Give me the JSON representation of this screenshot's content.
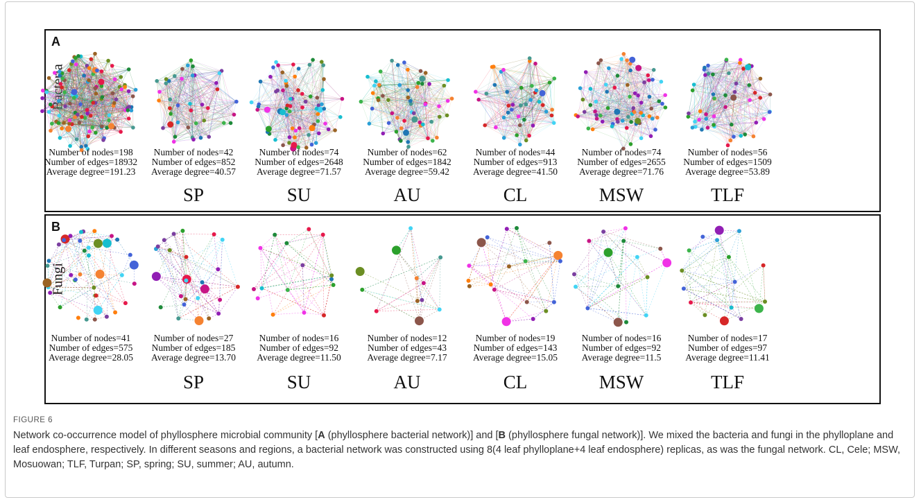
{
  "figure": {
    "label": "FIGURE 6",
    "caption_parts": [
      {
        "text": "Network co-occurrence model of phyllosphere microbial community [",
        "bold": false
      },
      {
        "text": "A",
        "bold": true
      },
      {
        "text": " (phyllosphere bacterial network)] and [",
        "bold": false
      },
      {
        "text": "B",
        "bold": true
      },
      {
        "text": " (phyllosphere fungal network)]. We mixed the bacteria and fungi in the phylloplane and leaf endosphere, respectively. In different seasons and regions, a bacterial network was constructed using 8(4 leaf phylloplane+4 leaf endosphere) replicas, as was the fungal network. CL, Cele; MSW, Mosuowan; TLF, Turpan; SP, spring; SU, summer; AU, autumn.",
        "bold": false
      }
    ]
  },
  "panels": [
    {
      "letter": "A",
      "row_label": "Bacteria",
      "network_density": "dense",
      "groups": [
        "SP",
        "SU",
        "AU",
        "CL",
        "MSW",
        "TLF"
      ],
      "networks": [
        {
          "group": "",
          "nodes": "Number of nodes=198",
          "edges": "Number of edges=18932",
          "degree": "Average degree=191.23",
          "node_count": 198
        },
        {
          "group": "SP",
          "nodes": "Number of nodes=42",
          "edges": "Number of edges=852",
          "degree": "Average degree=40.57",
          "node_count": 42
        },
        {
          "group": "SU",
          "nodes": "Number of nodes=74",
          "edges": "Number of edges=2648",
          "degree": "Average degree=71.57",
          "node_count": 74
        },
        {
          "group": "AU",
          "nodes": "Number of nodes=62",
          "edges": "Number of edges=1842",
          "degree": "Average degree=59.42",
          "node_count": 62
        },
        {
          "group": "CL",
          "nodes": "Number of nodes=44",
          "edges": "Number of edges=913",
          "degree": "Average degree=41.50",
          "node_count": 44
        },
        {
          "group": "MSW",
          "nodes": "Number of nodes=74",
          "edges": "Number of edges=2655",
          "degree": "Average degree=71.76",
          "node_count": 74
        },
        {
          "group": "TLF",
          "nodes": "Number of nodes=56",
          "edges": "Number of edges=1509",
          "degree": "Average degree=53.89",
          "node_count": 56
        }
      ]
    },
    {
      "letter": "B",
      "row_label": "Fungi",
      "network_density": "sparse",
      "groups": [
        "SP",
        "SU",
        "AU",
        "CL",
        "MSW",
        "TLF"
      ],
      "networks": [
        {
          "group": "",
          "nodes": "Number of nodes=41",
          "edges": "Number of edges=575",
          "degree": "Average degree=28.05",
          "node_count": 41
        },
        {
          "group": "SP",
          "nodes": "Number of nodes=27",
          "edges": "Number of edges=185",
          "degree": "Average degree=13.70",
          "node_count": 27
        },
        {
          "group": "SU",
          "nodes": "Number of nodes=16",
          "edges": "Number of edges=92",
          "degree": "Average degree=11.50",
          "node_count": 16
        },
        {
          "group": "AU",
          "nodes": "Number of nodes=12",
          "edges": "Number of edges=43",
          "degree": "Average degree=7.17",
          "node_count": 12
        },
        {
          "group": "CL",
          "nodes": "Number of nodes=19",
          "edges": "Number of edges=143",
          "degree": "Average degree=15.05",
          "node_count": 19
        },
        {
          "group": "MSW",
          "nodes": "Number of nodes=16",
          "edges": "Number of edges=92",
          "degree": "Average degree=11.5",
          "node_count": 16
        },
        {
          "group": "TLF",
          "nodes": "Number of nodes=17",
          "edges": "Number of edges=97",
          "degree": "Average degree=11.41",
          "node_count": 17
        }
      ]
    }
  ],
  "node_palette": [
    "#e6194b",
    "#3cb44b",
    "#4363d8",
    "#f58231",
    "#911eb4",
    "#42d4f4",
    "#f032e6",
    "#9a6324",
    "#469990",
    "#1e8a3a",
    "#7b3fa0",
    "#2a9fd6",
    "#d62728",
    "#8c564b",
    "#17becf",
    "#6b8e23",
    "#c71585",
    "#ff7f0e",
    "#1f77b4",
    "#2ca02c"
  ]
}
